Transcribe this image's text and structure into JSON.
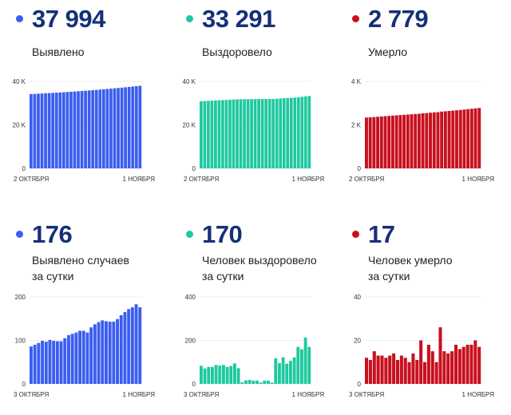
{
  "panels": [
    {
      "value": "37 994",
      "label": "Выявлено",
      "color": "#3a5ef0"
    },
    {
      "value": "33 291",
      "label": "Выздоровело",
      "color": "#1fc9a0"
    },
    {
      "value": "2 779",
      "label": "Умерло",
      "color": "#c8101e"
    },
    {
      "value": "176",
      "label": "Выявлено случаев",
      "label2": "за сутки",
      "color": "#3a5ef0"
    },
    {
      "value": "170",
      "label": "Человек выздоровело",
      "label2": "за сутки",
      "color": "#1fc9a0"
    },
    {
      "value": "17",
      "label": "Человек умерло",
      "label2": "за сутки",
      "color": "#c8101e"
    }
  ],
  "chart_data": [
    {
      "type": "bar",
      "title": "Выявлено",
      "ylim": [
        0,
        40000
      ],
      "yticks": [
        "0",
        "20 K",
        "40 K"
      ],
      "ytick_values": [
        0,
        20000,
        40000
      ],
      "xlabels": [
        "2 ОКТЯБРЯ",
        "1 НОЯБРЯ"
      ],
      "values": [
        34156,
        34242,
        34332,
        34426,
        34525,
        34622,
        34723,
        34822,
        34920,
        35018,
        35123,
        35235,
        35350,
        35468,
        35590,
        35712,
        35830,
        35960,
        36097,
        36239,
        36385,
        36529,
        36672,
        36815,
        36964,
        37122,
        37287,
        37459,
        37635,
        37818,
        37994
      ]
    },
    {
      "type": "bar",
      "title": "Выздоровело",
      "ylim": [
        0,
        40000
      ],
      "yticks": [
        "0",
        "20 K",
        "40 K"
      ],
      "ytick_values": [
        0,
        20000,
        40000
      ],
      "xlabels": [
        "2 ОКТЯБРЯ",
        "1 НОЯБРЯ"
      ],
      "values": [
        30916,
        30999,
        31070,
        31148,
        31226,
        31313,
        31397,
        31484,
        31562,
        31644,
        31738,
        31810,
        31817,
        31833,
        31851,
        31866,
        31881,
        31887,
        31902,
        31917,
        31923,
        32041,
        32136,
        32258,
        32351,
        32457,
        32579,
        32749,
        32908,
        33121,
        33291
      ]
    },
    {
      "type": "bar",
      "title": "Умерло",
      "ylim": [
        0,
        4000
      ],
      "yticks": [
        "0",
        "2 K",
        "4 K"
      ],
      "ytick_values": [
        0,
        2000,
        4000
      ],
      "xlabels": [
        "2 ОКТЯБРЯ",
        "1 НОЯБРЯ"
      ],
      "values": [
        2338,
        2350,
        2361,
        2376,
        2389,
        2402,
        2414,
        2427,
        2441,
        2452,
        2465,
        2477,
        2487,
        2501,
        2512,
        2532,
        2542,
        2560,
        2575,
        2585,
        2611,
        2626,
        2640,
        2655,
        2673,
        2689,
        2706,
        2724,
        2742,
        2762,
        2779
      ]
    },
    {
      "type": "bar",
      "title": "Выявлено случаев за сутки",
      "ylim": [
        0,
        200
      ],
      "yticks": [
        "0",
        "100",
        "200"
      ],
      "ytick_values": [
        0,
        100,
        200
      ],
      "xlabels": [
        "3 ОКТЯБРЯ",
        "1 НОЯБРЯ"
      ],
      "values": [
        86,
        90,
        94,
        99,
        97,
        101,
        99,
        98,
        98,
        105,
        112,
        115,
        118,
        122,
        122,
        118,
        130,
        137,
        142,
        146,
        144,
        143,
        143,
        149,
        158,
        165,
        172,
        176,
        183,
        176
      ]
    },
    {
      "type": "bar",
      "title": "Человек выздоровело за сутки",
      "ylim": [
        0,
        400
      ],
      "yticks": [
        "0",
        "200",
        "400"
      ],
      "ytick_values": [
        0,
        200,
        400
      ],
      "xlabels": [
        "3 ОКТЯБРЯ",
        "1 НОЯБРЯ"
      ],
      "values": [
        83,
        71,
        78,
        78,
        87,
        84,
        87,
        78,
        82,
        94,
        72,
        7,
        16,
        18,
        15,
        15,
        6,
        15,
        15,
        6,
        118,
        95,
        122,
        93,
        106,
        122,
        170,
        159,
        213,
        170
      ]
    },
    {
      "type": "bar",
      "title": "Человек умерло за сутки",
      "ylim": [
        0,
        40
      ],
      "yticks": [
        "0",
        "20",
        "40"
      ],
      "ytick_values": [
        0,
        20,
        40
      ],
      "xlabels": [
        "3 ОКТЯБРЯ",
        "1 НОЯБРЯ"
      ],
      "values": [
        12,
        11,
        15,
        13,
        13,
        12,
        13,
        14,
        11,
        13,
        12,
        10,
        14,
        11,
        20,
        10,
        18,
        15,
        10,
        26,
        15,
        14,
        15,
        18,
        16,
        17,
        18,
        18,
        20,
        17
      ]
    }
  ]
}
